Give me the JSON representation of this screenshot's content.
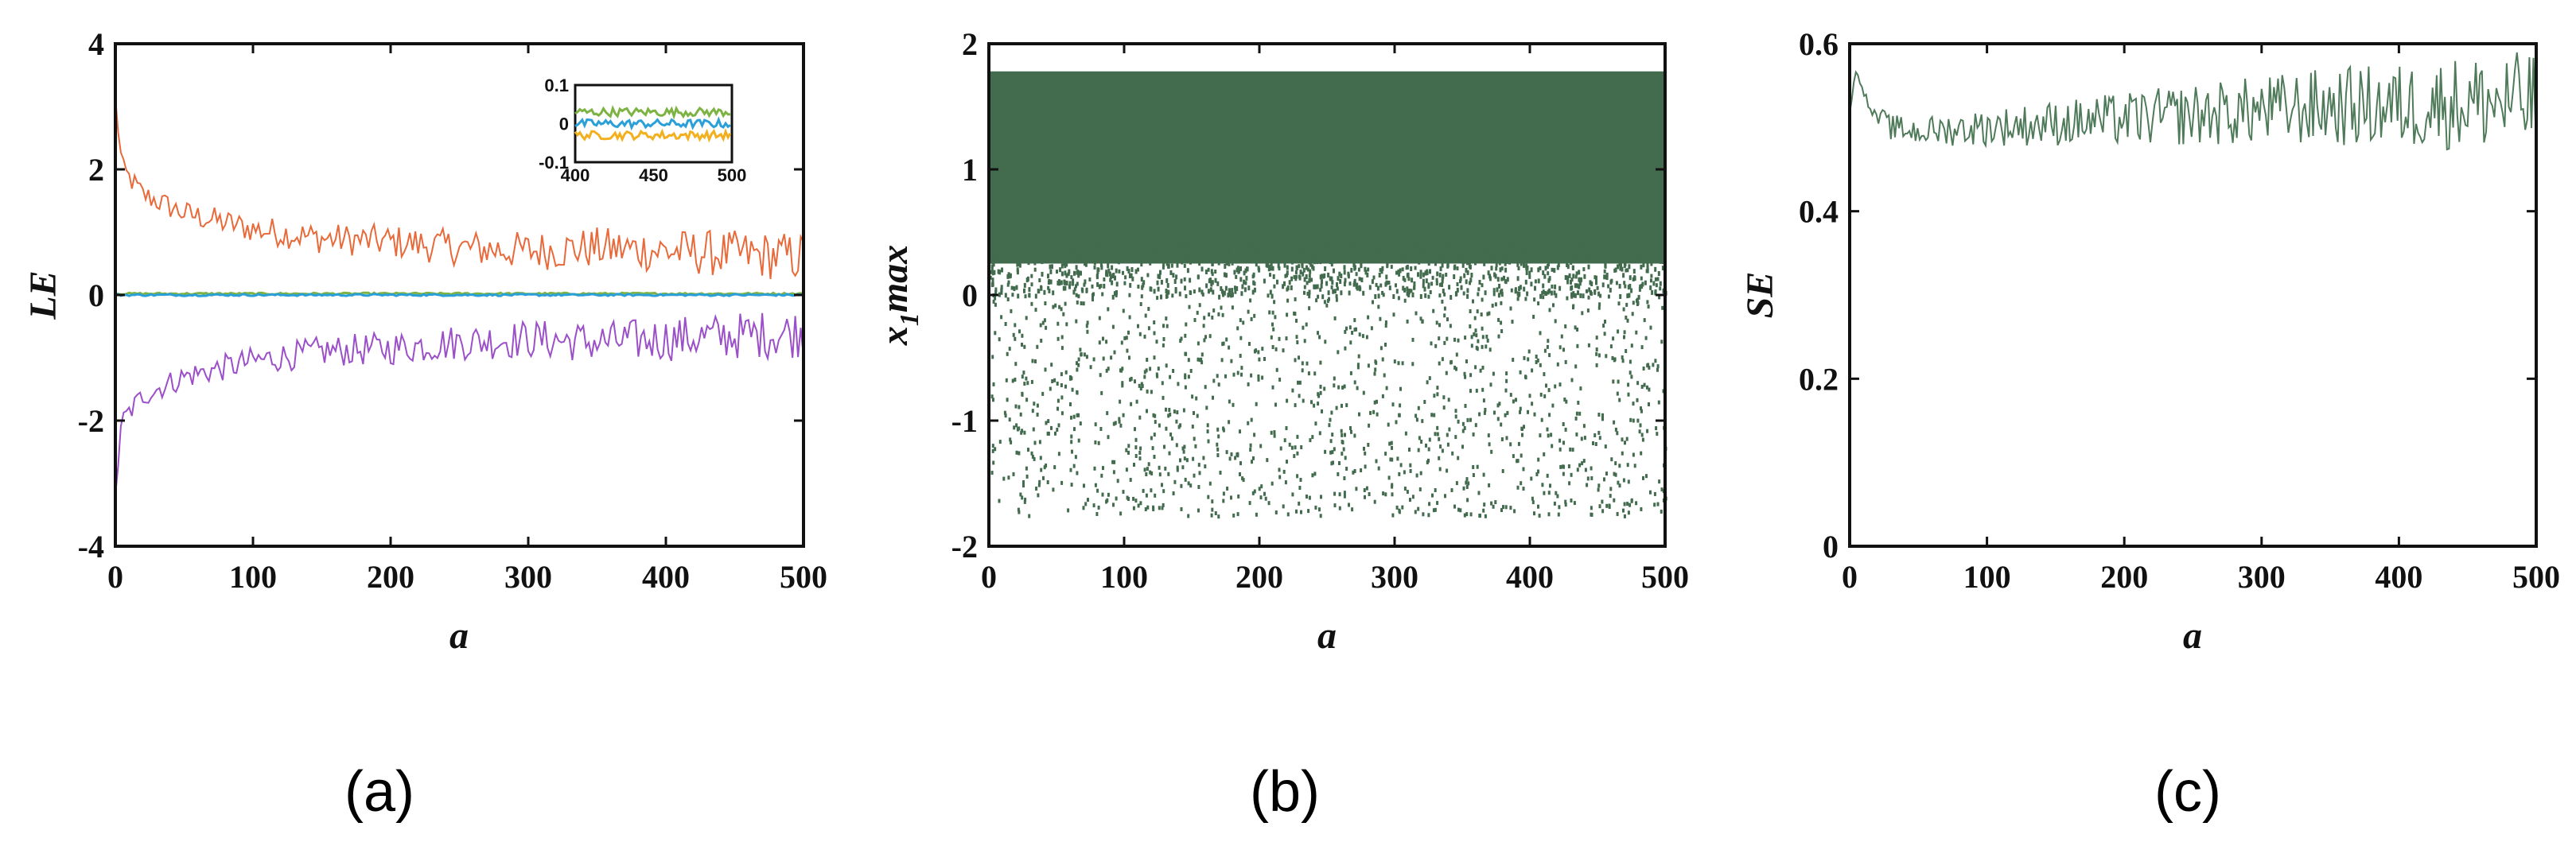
{
  "chart_data": [
    {
      "id": "a",
      "type": "line",
      "caption": "(a)",
      "xlabel": "a",
      "ylabel": "LE",
      "xlim": [
        0,
        500
      ],
      "ylim": [
        -4,
        4
      ],
      "xticks": [
        "0",
        "100",
        "200",
        "300",
        "400",
        "500"
      ],
      "yticks": [
        "-4",
        "-2",
        "0",
        "2",
        "4"
      ],
      "series": [
        {
          "color": "#E8693A",
          "x": [
            0,
            5,
            20,
            50,
            100,
            150,
            200,
            250,
            300,
            350,
            400,
            450,
            500
          ],
          "y": [
            3.1,
            2.0,
            1.6,
            1.3,
            1.05,
            0.9,
            0.85,
            0.75,
            0.7,
            0.75,
            0.7,
            0.65,
            0.6
          ]
        },
        {
          "color": "#9B4FC8",
          "x": [
            0,
            5,
            20,
            50,
            100,
            150,
            200,
            250,
            300,
            350,
            400,
            450,
            500
          ],
          "y": [
            -3.1,
            -2.0,
            -1.6,
            -1.3,
            -1.05,
            -0.9,
            -0.85,
            -0.75,
            -0.7,
            -0.75,
            -0.7,
            -0.65,
            -0.6
          ]
        },
        {
          "color": "#7CB342",
          "x": [
            0,
            500
          ],
          "y": [
            0.02,
            0.02
          ]
        },
        {
          "color": "#2A9FD8",
          "x": [
            0,
            500
          ],
          "y": [
            0.0,
            0.0
          ]
        }
      ],
      "inset": {
        "xlim": [
          400,
          500
        ],
        "ylim": [
          -0.1,
          0.1
        ],
        "xticks": [
          "400",
          "450",
          "500"
        ],
        "yticks": [
          "-0.1",
          "0",
          "0.1"
        ],
        "series": [
          {
            "color": "#7CB342",
            "y": 0.03
          },
          {
            "color": "#2A9FD8",
            "y": 0.0
          },
          {
            "color": "#F2B01E",
            "y": -0.03
          }
        ]
      }
    },
    {
      "id": "b",
      "type": "scatter",
      "caption": "(b)",
      "xlabel": "a",
      "ylabel": "x",
      "ylabel_sub": "1",
      "ylabel_rest": "max",
      "xlim": [
        0,
        500
      ],
      "ylim": [
        -2,
        2
      ],
      "xticks": [
        "0",
        "100",
        "200",
        "300",
        "400",
        "500"
      ],
      "yticks": [
        "-2",
        "-1",
        "0",
        "1",
        "2"
      ],
      "color": "#436B4E",
      "dense_band": [
        0.0,
        1.78
      ],
      "sparse_range": [
        -1.75,
        0.3
      ]
    },
    {
      "id": "c",
      "type": "line",
      "caption": "(c)",
      "xlabel": "a",
      "ylabel": "SE",
      "xlim": [
        0,
        500
      ],
      "ylim": [
        0,
        0.6
      ],
      "xticks": [
        "0",
        "100",
        "200",
        "300",
        "400",
        "500"
      ],
      "yticks": [
        "0",
        "0.2",
        "0.4",
        "0.6"
      ],
      "color": "#4F7B5A",
      "x": [
        0,
        5,
        15,
        30,
        50,
        100,
        150,
        200,
        250,
        300,
        350,
        400,
        450,
        500
      ],
      "y": [
        0.52,
        0.57,
        0.52,
        0.5,
        0.495,
        0.5,
        0.505,
        0.51,
        0.515,
        0.52,
        0.525,
        0.525,
        0.53,
        0.53
      ]
    }
  ]
}
